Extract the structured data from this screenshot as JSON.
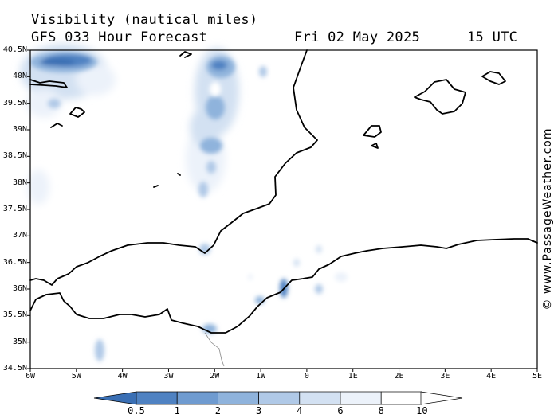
{
  "header": {
    "title": "Visibility (nautical miles)",
    "model_line": "GFS 033 Hour Forecast",
    "date": "Fri 02 May 2025",
    "time": "15 UTC"
  },
  "latitude_labels": [
    "40.5N",
    "40N",
    "39.5N",
    "39N",
    "38.5N",
    "38N",
    "37.5N",
    "37N",
    "36.5N",
    "36N",
    "35.5N",
    "35N",
    "34.5N"
  ],
  "longitude_labels": [
    "6W",
    "5W",
    "4W",
    "3W",
    "2W",
    "1W",
    "0",
    "1E",
    "2E",
    "3E",
    "4E",
    "5E"
  ],
  "colorbar": {
    "labels": [
      "0.5",
      "1",
      "2",
      "3",
      "4",
      "6",
      "8",
      "10"
    ],
    "colors": [
      "#3a6fb4",
      "#4f82c2",
      "#6f9bd0",
      "#8fb3dc",
      "#b0c9e7",
      "#d3e1f2",
      "#ecf2fa",
      "#ffffff"
    ]
  },
  "credit": "© www.PassageWeather.com",
  "map_extent": {
    "lon": [
      -6,
      5
    ],
    "lat": [
      34.5,
      40.5
    ]
  }
}
